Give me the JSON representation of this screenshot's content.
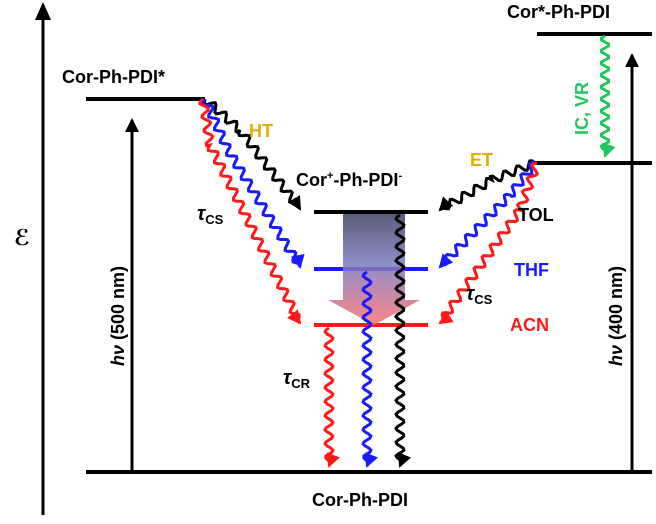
{
  "labels": {
    "energy_axis": "ℰ",
    "ground_state": "Cor-Ph-PDI",
    "pdi_excited": "Cor-Ph-PDI*",
    "cor_excited": "Cor*-Ph-PDI",
    "cs_state_main": "Cor",
    "cs_state_plus": "+",
    "cs_state_mid": "-Ph-PDI",
    "cs_state_minus": "-",
    "ht": "HT",
    "et": "ET",
    "ic_vr": "IC, VR",
    "solvent_tol": "TOL",
    "solvent_thf": "THF",
    "solvent_acn": "ACN",
    "hv_left_italic": "hν",
    "hv_left_rest": " (500 nm)",
    "hv_right_italic": "hν",
    "hv_right_rest": " (400 nm)",
    "tau_symbol": "τ",
    "tau_cs_sub": "CS",
    "tau_cr_sub": "CR"
  },
  "colors": {
    "tol": "#000000",
    "thf": "#1a1aff",
    "acn": "#ff1a1a",
    "ht_label": "#e0b000",
    "et_label": "#e0b000",
    "ic_vr": "#22c55e",
    "text": "#000000"
  }
}
